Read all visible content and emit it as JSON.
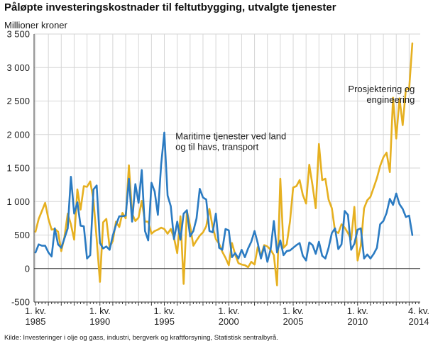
{
  "chart_data": {
    "type": "line",
    "title": "Påløpte investeringskostnader til feltutbygging, utvalgte tjenester",
    "ylabel": "Millioner kroner",
    "source": "Kilde: Investeringer i olje og gass, industri, bergverk og kraftforsyning, Statistisk sentralbyrå.",
    "ylim": [
      -500,
      3500
    ],
    "yticks": [
      -500,
      0,
      500,
      1000,
      1500,
      2000,
      2500,
      3000,
      3500
    ],
    "ytick_labels": [
      "-500",
      "0",
      "500",
      "1 000",
      "1 500",
      "2 000",
      "2 500",
      "3 000",
      "3 500"
    ],
    "x_start": "1985Q1",
    "x_end": "2014Q4",
    "n_quarters": 120,
    "xticks": [
      {
        "index": 0,
        "line1": "1. kv.",
        "line2": "1985"
      },
      {
        "index": 20,
        "line1": "1. kv.",
        "line2": "1990"
      },
      {
        "index": 40,
        "line1": "1. kv.",
        "line2": "1995"
      },
      {
        "index": 60,
        "line1": "1. kv.",
        "line2": "2000"
      },
      {
        "index": 80,
        "line1": "1. kv.",
        "line2": "2005"
      },
      {
        "index": 100,
        "line1": "1. kv.",
        "line2": "2010"
      },
      {
        "index": 119,
        "line1": "4. kv.",
        "line2": "2014"
      }
    ],
    "grid": true,
    "series": [
      {
        "name": "Prosjektering og engineering",
        "label_lines": [
          "Prosjektering og",
          "engineering"
        ],
        "label_anchor": {
          "index": 116,
          "value": 2630
        },
        "color": "#e6b020",
        "values": [
          550,
          740,
          860,
          980,
          740,
          580,
          590,
          550,
          260,
          470,
          820,
          660,
          430,
          1180,
          880,
          1230,
          1220,
          1300,
          1020,
          440,
          -200,
          690,
          740,
          320,
          410,
          700,
          620,
          830,
          750,
          1540,
          820,
          710,
          760,
          1010,
          700,
          700,
          520,
          560,
          580,
          610,
          590,
          520,
          590,
          460,
          230,
          780,
          -230,
          860,
          640,
          340,
          420,
          490,
          540,
          630,
          890,
          620,
          440,
          370,
          250,
          160,
          50,
          380,
          210,
          80,
          60,
          50,
          20,
          100,
          60,
          320,
          190,
          350,
          330,
          280,
          200,
          -250,
          1340,
          310,
          360,
          700,
          1210,
          1230,
          1320,
          1100,
          970,
          1550,
          1240,
          900,
          1860,
          1320,
          1340,
          1030,
          900,
          560,
          530,
          660,
          610,
          530,
          430,
          920,
          120,
          340,
          900,
          1020,
          1070,
          1210,
          1350,
          1530,
          1660,
          1730,
          1440,
          2550,
          1940,
          2540,
          2140,
          2680,
          2680,
          3360
        ]
      },
      {
        "name": "Maritime tjenester ved land og til havs, transport",
        "label_lines": [
          "Maritime tjenester ved land",
          "og til havs, transport"
        ],
        "label_anchor": {
          "index": 43,
          "value": 1930
        },
        "color": "#2b7bc2",
        "values": [
          240,
          360,
          340,
          340,
          240,
          180,
          600,
          360,
          310,
          450,
          600,
          1370,
          820,
          990,
          640,
          630,
          150,
          200,
          1180,
          1240,
          380,
          300,
          330,
          280,
          490,
          650,
          780,
          780,
          790,
          1340,
          700,
          1260,
          980,
          1470,
          560,
          420,
          1280,
          1150,
          800,
          1550,
          2030,
          1090,
          930,
          440,
          700,
          430,
          820,
          870,
          480,
          560,
          750,
          1190,
          1060,
          1030,
          560,
          540,
          820,
          310,
          280,
          590,
          570,
          170,
          230,
          150,
          280,
          170,
          300,
          400,
          560,
          380,
          150,
          330,
          100,
          290,
          710,
          240,
          420,
          200,
          260,
          270,
          310,
          350,
          380,
          190,
          120,
          390,
          350,
          220,
          400,
          190,
          150,
          310,
          530,
          600,
          290,
          360,
          860,
          800,
          280,
          370,
          580,
          600,
          150,
          210,
          150,
          220,
          310,
          660,
          710,
          830,
          1040,
          950,
          1120,
          960,
          890,
          770,
          790,
          500
        ]
      }
    ]
  }
}
